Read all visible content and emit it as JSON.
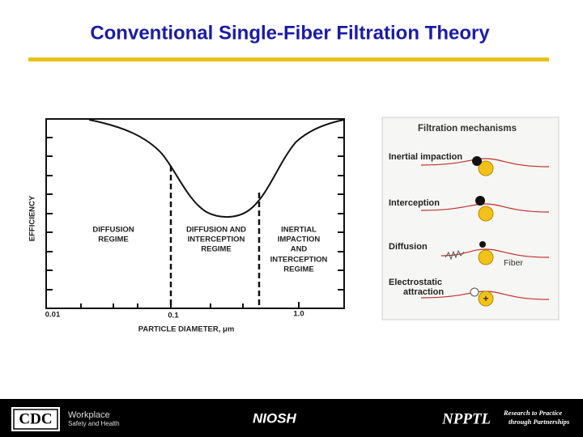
{
  "title": "Conventional Single-Fiber Filtration Theory",
  "efficiency_plot": {
    "y_label": "EFFICIENCY",
    "x_label": "PARTICLE DIAMETER, μm",
    "x_tick_labels": [
      "0.01",
      "0.1",
      "1.0"
    ],
    "regions": [
      [
        "DIFFUSION",
        "REGIME"
      ],
      [
        "DIFFUSION AND",
        "INTERCEPTION",
        "REGIME"
      ],
      [
        "INERTIAL",
        "IMPACTION",
        "AND",
        "INTERCEPTION",
        "REGIME"
      ]
    ]
  },
  "mechanisms": {
    "title": "Filtration mechanisms",
    "items": [
      "Inertial impaction",
      "Interception",
      "Diffusion",
      "Electrostatic",
      "attraction"
    ],
    "fiber_label": "Fiber",
    "charge": "+"
  },
  "footer": {
    "cdc": "CDC",
    "cdc_lines": [
      "Workplace",
      "Safety and Health"
    ],
    "niosh": "NIOSH",
    "npptl": "NPPTL",
    "npptl_lines": [
      "Research to Practice",
      "through Partnerships"
    ]
  }
}
